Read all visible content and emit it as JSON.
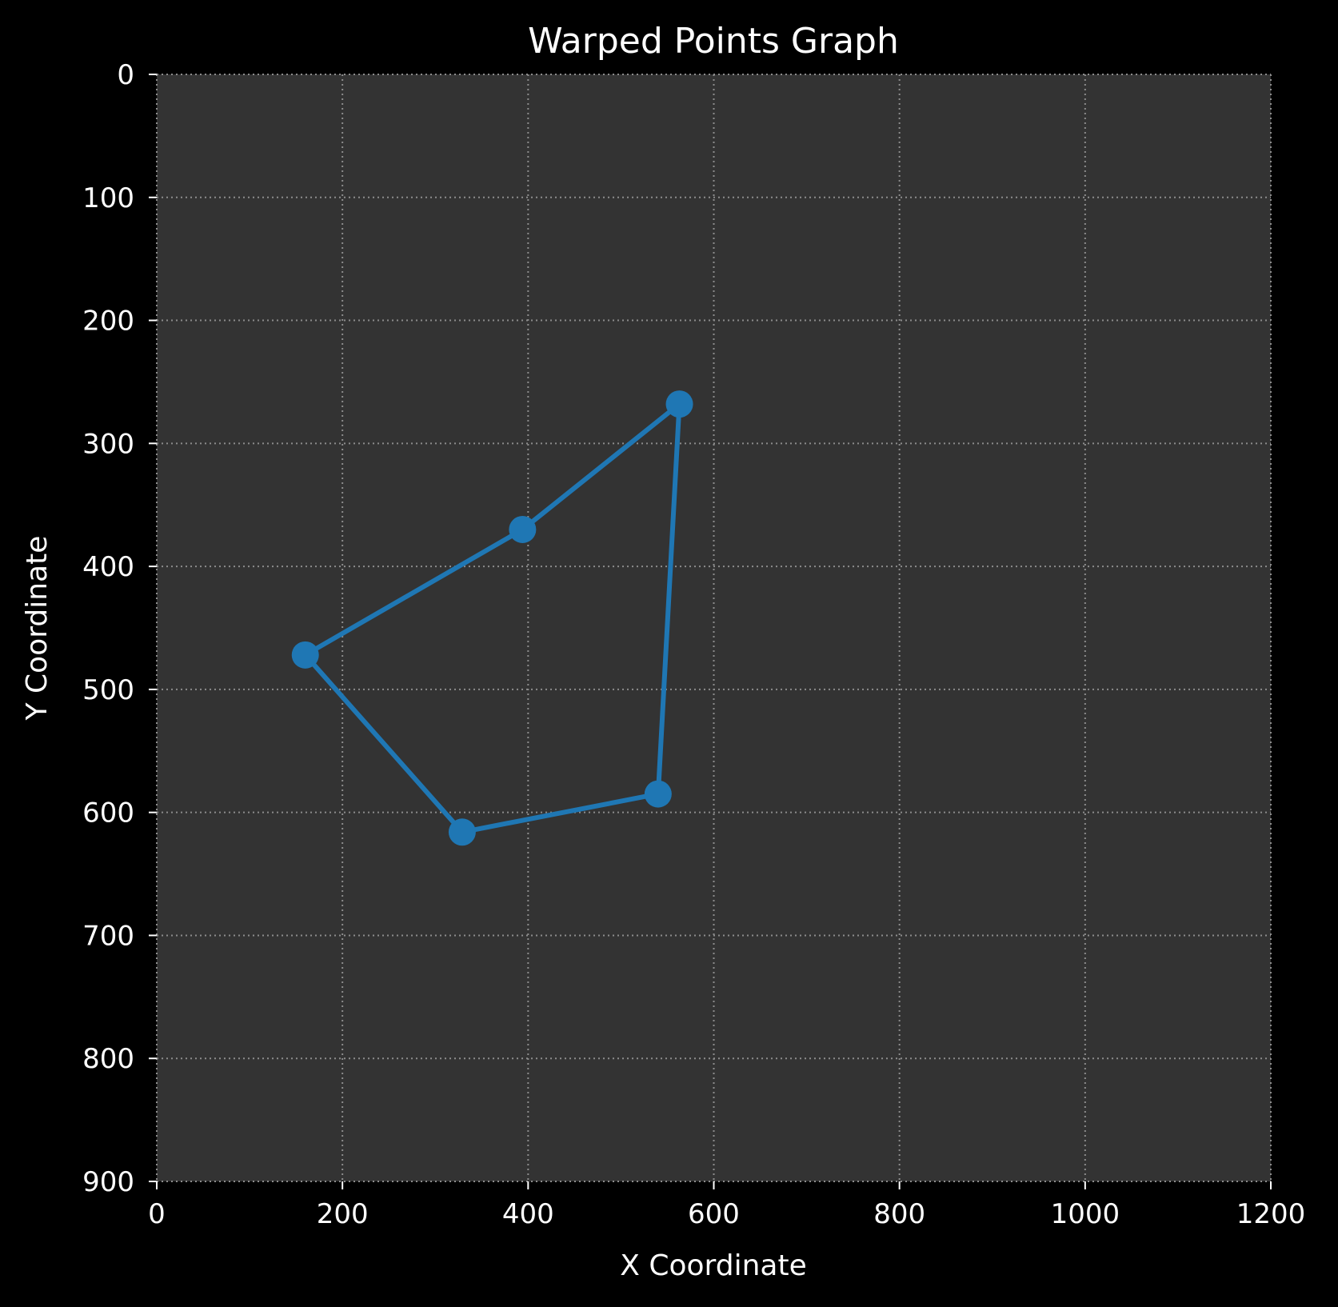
{
  "chart_data": {
    "type": "line",
    "title": "Warped Points Graph",
    "xlabel": "X Coordinate",
    "ylabel": "Y Coordinate",
    "xlim": [
      0,
      1200
    ],
    "ylim": [
      900,
      0
    ],
    "y_inverted": true,
    "xticks": [
      0,
      200,
      400,
      600,
      800,
      1000,
      1200
    ],
    "yticks": [
      0,
      100,
      200,
      300,
      400,
      500,
      600,
      700,
      800,
      900
    ],
    "grid": true,
    "grid_style": "dotted",
    "closed": true,
    "x": [
      563,
      394,
      160,
      329,
      540
    ],
    "y": [
      268,
      370,
      472,
      616,
      585
    ],
    "colors": {
      "figure_background": "#000000",
      "axes_background": "#333333",
      "line": "#1f77b4",
      "grid": "#8c8c8c",
      "text": "#ffffff"
    }
  }
}
